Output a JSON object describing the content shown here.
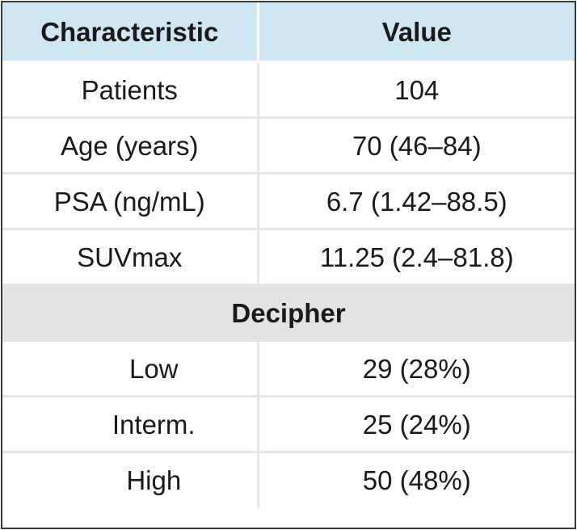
{
  "table": {
    "headers": [
      "Characteristic",
      "Value"
    ],
    "rows": [
      [
        "Patients",
        "104"
      ],
      [
        "Age (years)",
        "70 (46–84)"
      ],
      [
        "PSA (ng/mL)",
        "6.7 (1.42–88.5)"
      ],
      [
        "SUVmax",
        "11.25 (2.4–81.8)"
      ]
    ],
    "section": {
      "title": "Decipher",
      "rows": [
        [
          "Low",
          "29 (28%)"
        ],
        [
          "Interm.",
          "25 (24%)"
        ],
        [
          "High",
          "50 (48%)"
        ]
      ]
    }
  },
  "colors": {
    "header_bg": "#cfe6f3",
    "section_bg": "#e3e3e3",
    "border": "#3a3a3a"
  }
}
